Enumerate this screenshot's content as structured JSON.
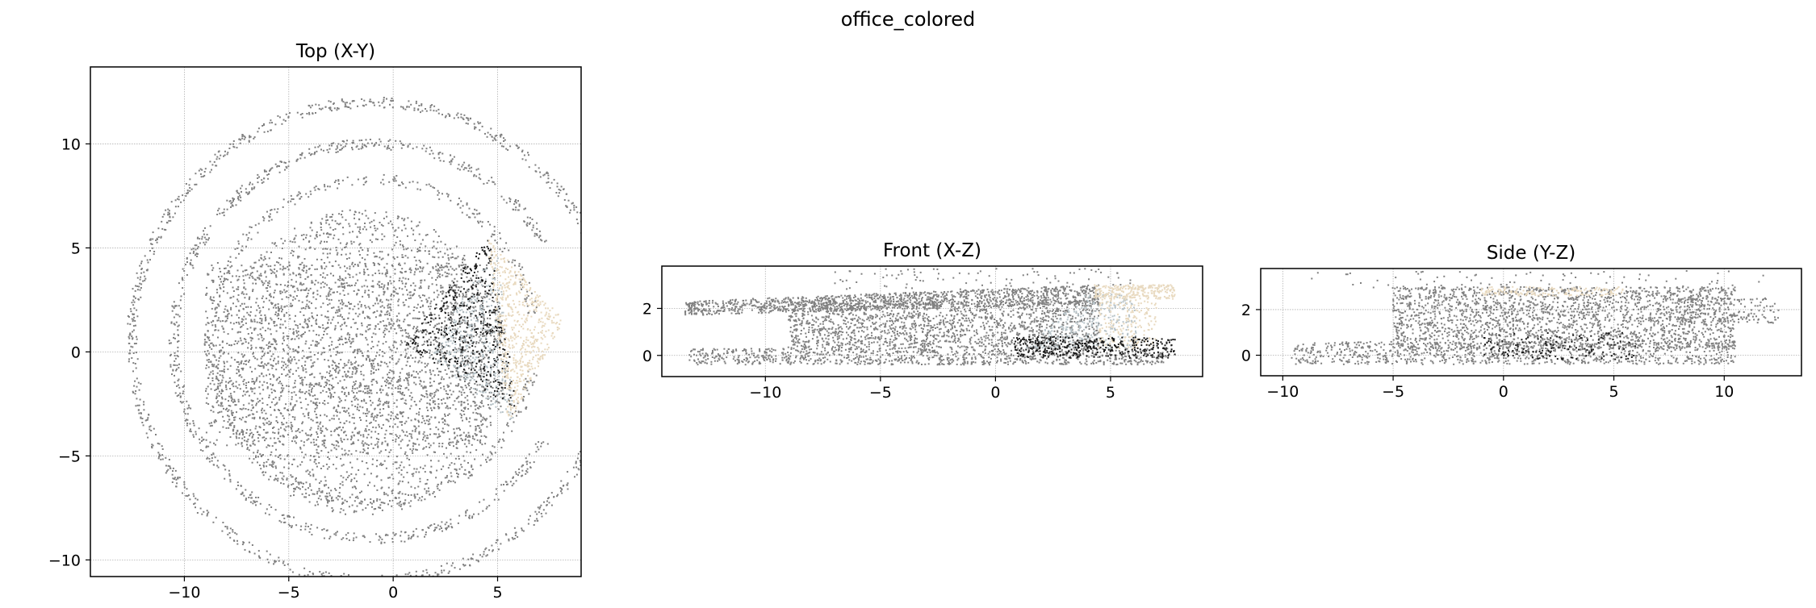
{
  "figure": {
    "suptitle": "office_colored"
  },
  "colors": {
    "points_gray": "#808080",
    "points_dark": "#1a1a1a",
    "points_beige": "#e8d9bf",
    "points_bluegray": "#b7c3c8",
    "grid": "#b0b0b0",
    "axes": "#000000"
  },
  "chart_data": [
    {
      "id": "top",
      "type": "scatter",
      "title": "Top (X-Y)",
      "xlabel": "",
      "ylabel": "",
      "xlim": [
        -14.5,
        9.0
      ],
      "ylim": [
        -10.8,
        13.7
      ],
      "xticks": [
        -10,
        -5,
        0,
        5
      ],
      "yticks": [
        -10,
        -5,
        0,
        5,
        10
      ],
      "grid": true,
      "series": [
        {
          "color": "#808080",
          "regions": [
            {
              "shape": "disk",
              "cx": -1.5,
              "cy": -0.5,
              "r": 7.0,
              "n": 2600
            },
            {
              "shape": "rect",
              "x0": -9,
              "x1": 4.5,
              "y0": -4.5,
              "y1": 4.3,
              "n": 1500
            },
            {
              "shape": "arc",
              "cx": -1,
              "cy": 0.5,
              "r": 11.5,
              "a0": 20,
              "a1": 340,
              "n": 900
            },
            {
              "shape": "arc",
              "cx": -1,
              "cy": 0.5,
              "r": 9.5,
              "a0": 30,
              "a1": 330,
              "n": 700
            },
            {
              "shape": "arc",
              "cx": -1,
              "cy": 0.5,
              "r": 7.8,
              "a0": 10,
              "a1": 350,
              "n": 500
            }
          ]
        },
        {
          "color": "#1a1a1a",
          "regions": [
            {
              "shape": "wedge",
              "points": [
                [
                  0.5,
                  0.3
                ],
                [
                  4.6,
                  5.6
                ],
                [
                  6.0,
                  -2.8
                ]
              ],
              "n": 500
            }
          ]
        },
        {
          "color": "#b7c3c8",
          "regions": [
            {
              "shape": "wedge",
              "points": [
                [
                  1.5,
                  0
                ],
                [
                  5.0,
                  5.0
                ],
                [
                  5.8,
                  -3.5
                ]
              ],
              "n": 350
            }
          ]
        },
        {
          "color": "#e8d9bf",
          "regions": [
            {
              "shape": "wedge",
              "points": [
                [
                  4.5,
                  5.5
                ],
                [
                  8.2,
                  1.5
                ],
                [
                  5.5,
                  -3.5
                ]
              ],
              "n": 550
            }
          ]
        }
      ]
    },
    {
      "id": "front",
      "type": "scatter",
      "title": "Front (X-Z)",
      "xlabel": "",
      "ylabel": "",
      "xlim": [
        -14.5,
        9.0
      ],
      "ylim": [
        -0.9,
        3.8
      ],
      "xticks": [
        -10,
        -5,
        0,
        5
      ],
      "yticks": [
        0,
        2
      ],
      "grid": true,
      "series": [
        {
          "color": "#808080",
          "regions": [
            {
              "shape": "poly",
              "points": [
                [
                  -13.5,
                  1.7
                ],
                [
                  4.5,
                  2.2
                ],
                [
                  4.5,
                  3.0
                ],
                [
                  -13.5,
                  2.3
                ]
              ],
              "n": 1300
            },
            {
              "shape": "rect",
              "x0": -9,
              "x1": 4.5,
              "y0": 0.3,
              "y1": 2.3,
              "n": 1600
            },
            {
              "shape": "rect",
              "x0": -13.3,
              "x1": 7.5,
              "y0": -0.4,
              "y1": 0.3,
              "n": 900
            },
            {
              "shape": "rect",
              "x0": -7,
              "x1": 6,
              "y0": 2.8,
              "y1": 3.7,
              "n": 90
            }
          ]
        },
        {
          "color": "#b7c3c8",
          "regions": [
            {
              "shape": "poly",
              "points": [
                [
                  1.2,
                  0.3
                ],
                [
                  4.0,
                  2.7
                ],
                [
                  6.0,
                  2.6
                ],
                [
                  6.2,
                  0.3
                ]
              ],
              "n": 300
            }
          ]
        },
        {
          "color": "#e8d9bf",
          "regions": [
            {
              "shape": "rect",
              "x0": 4.3,
              "x1": 7.8,
              "y0": 2.4,
              "y1": 3.0,
              "n": 260
            },
            {
              "shape": "rect",
              "x0": 4.5,
              "x1": 7.0,
              "y0": 0.3,
              "y1": 2.4,
              "n": 180
            }
          ]
        },
        {
          "color": "#1a1a1a",
          "regions": [
            {
              "shape": "rect",
              "x0": 0.8,
              "x1": 7.8,
              "y0": -0.1,
              "y1": 0.8,
              "n": 380
            }
          ]
        }
      ]
    },
    {
      "id": "side",
      "type": "scatter",
      "title": "Side (Y-Z)",
      "xlabel": "",
      "ylabel": "",
      "xlim": [
        -11.0,
        13.5
      ],
      "ylim": [
        -0.9,
        3.8
      ],
      "xticks": [
        -10,
        -5,
        0,
        5,
        10
      ],
      "yticks": [
        0,
        2
      ],
      "grid": true,
      "series": [
        {
          "color": "#808080",
          "regions": [
            {
              "shape": "rect",
              "x0": -5,
              "x1": 10.5,
              "y0": 0.3,
              "y1": 3.0,
              "n": 2200
            },
            {
              "shape": "rect",
              "x0": -9.6,
              "x1": 10.5,
              "y0": -0.4,
              "y1": 0.6,
              "n": 900
            },
            {
              "shape": "rect",
              "x0": 8,
              "x1": 12.5,
              "y0": 1.4,
              "y1": 2.5,
              "n": 160
            },
            {
              "shape": "rect",
              "x0": -9,
              "x1": 12,
              "y0": 2.9,
              "y1": 3.7,
              "n": 80
            }
          ]
        },
        {
          "color": "#e8d9bf",
          "regions": [
            {
              "shape": "rect",
              "x0": -1,
              "x1": 5.5,
              "y0": 2.6,
              "y1": 3.0,
              "n": 160
            }
          ]
        },
        {
          "color": "#1a1a1a",
          "regions": [
            {
              "shape": "rect",
              "x0": -1,
              "x1": 6,
              "y0": -0.2,
              "y1": 1.0,
              "n": 140
            }
          ]
        }
      ]
    }
  ]
}
